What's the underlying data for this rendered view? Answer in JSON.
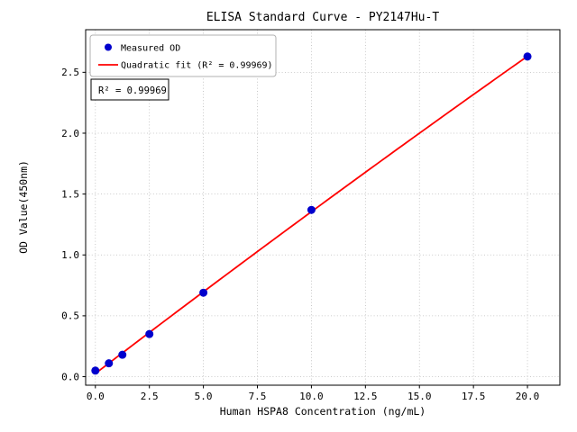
{
  "chart_data": {
    "type": "scatter",
    "title": "ELISA Standard Curve - PY2147Hu-T",
    "xlabel": "Human HSPA8 Concentration (ng/mL)",
    "ylabel": "OD Value(450nm)",
    "xlim": [
      -0.45,
      21.5
    ],
    "ylim": [
      -0.07,
      2.85
    ],
    "xticks": [
      0,
      2.5,
      5,
      7.5,
      10,
      12.5,
      15,
      17.5,
      20
    ],
    "xtick_labels": [
      "0.0",
      "2.5",
      "5.0",
      "7.5",
      "10.0",
      "12.5",
      "15.0",
      "17.5",
      "20.0"
    ],
    "yticks": [
      0,
      0.5,
      1,
      1.5,
      2,
      2.5
    ],
    "ytick_labels": [
      "0.0",
      "0.5",
      "1.0",
      "1.5",
      "2.0",
      "2.5"
    ],
    "grid": true,
    "colors": {
      "scatter": "#0000cd",
      "fit_line": "#ff0000",
      "grid": "#bbbbbb",
      "text": "#000000"
    },
    "series": [
      {
        "name": "Measured OD",
        "type": "scatter",
        "x": [
          0,
          0.625,
          1.25,
          2.5,
          5,
          10,
          20
        ],
        "y": [
          0.05,
          0.11,
          0.18,
          0.35,
          0.69,
          1.37,
          2.63
        ]
      },
      {
        "name": "Quadratic fit",
        "type": "line",
        "fit_coefficients": {
          "a": -0.00026,
          "b": 0.1355,
          "c": 0.026
        },
        "x_range": [
          0,
          20
        ]
      }
    ],
    "legend": {
      "position": "upper-left",
      "entries": [
        {
          "label": "Measured OD",
          "marker": "dot",
          "color": "#0000cd"
        },
        {
          "label": "Quadratic fit (R² = 0.99969)",
          "marker": "line",
          "color": "#ff0000"
        }
      ]
    },
    "annotation": {
      "text": "R² = 0.99969"
    }
  }
}
